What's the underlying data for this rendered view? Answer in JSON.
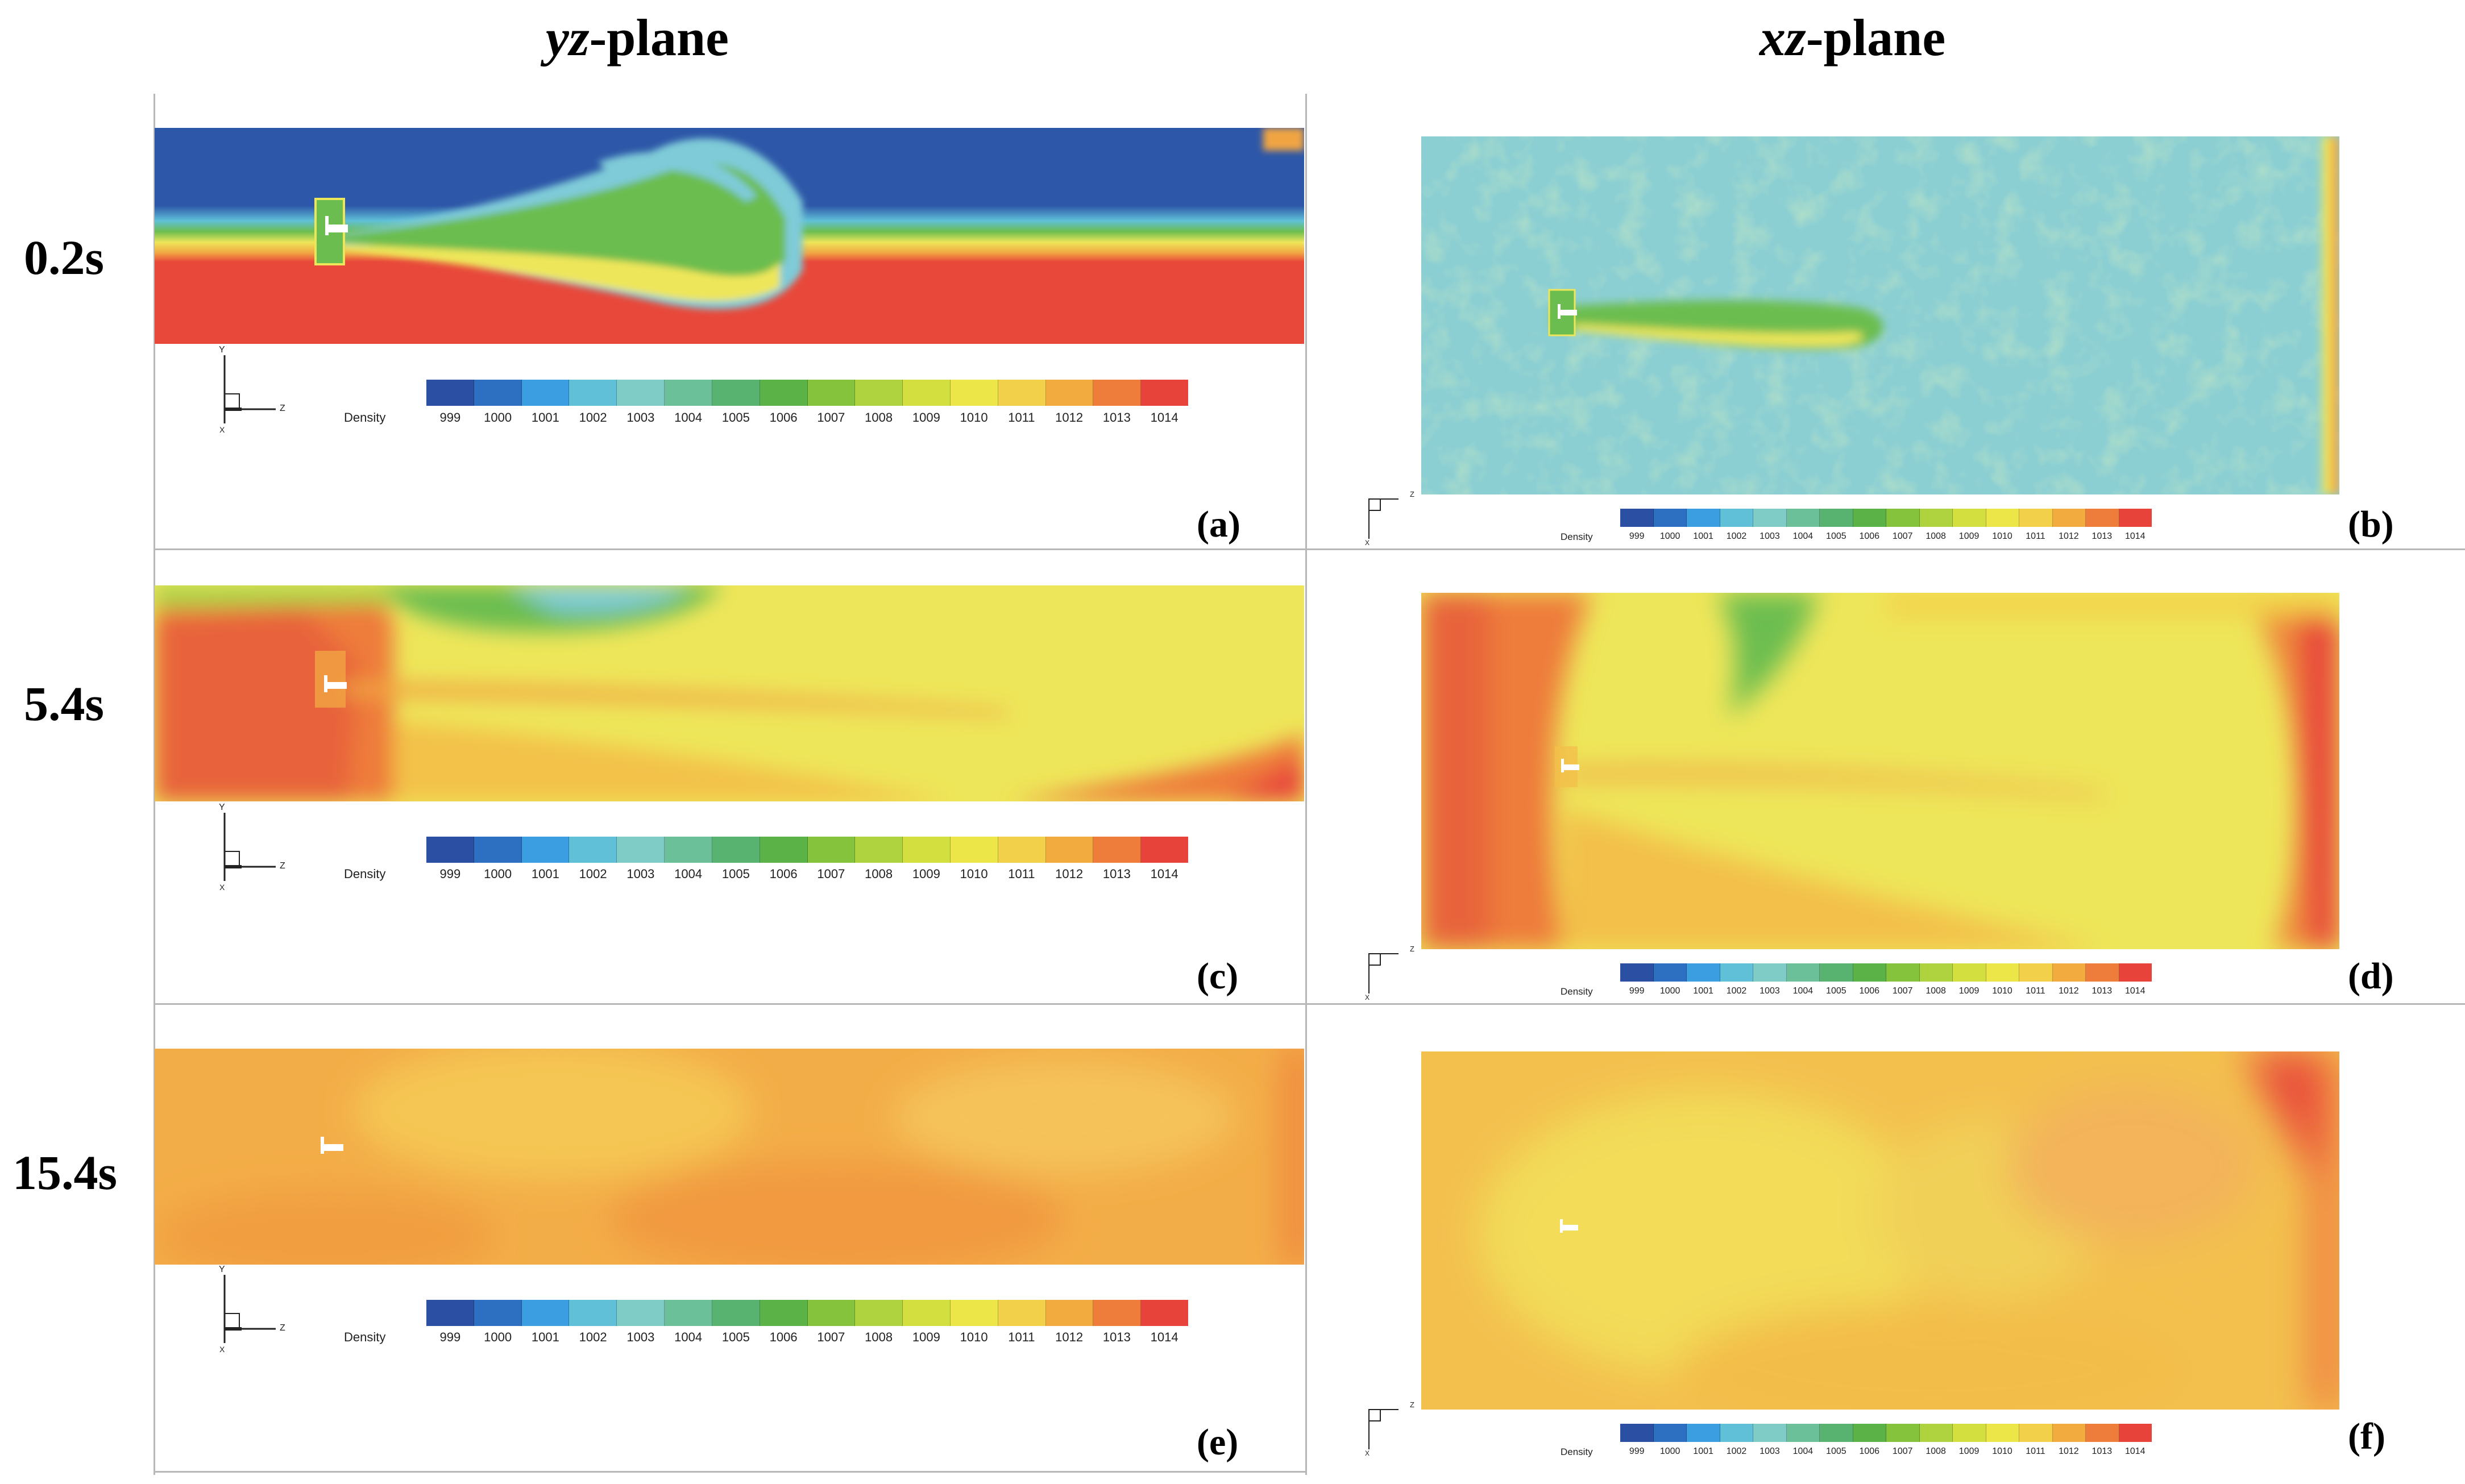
{
  "headers": {
    "yz_italic": "yz",
    "yz_rest": "-plane",
    "xz_italic": "xz",
    "xz_rest": "-plane"
  },
  "rows": [
    "0.2s",
    "5.4s",
    "15.4s"
  ],
  "panels": [
    "(a)",
    "(b)",
    "(c)",
    "(d)",
    "(e)",
    "(f)"
  ],
  "colorbar": {
    "label": "Density",
    "ticks": [
      "999",
      "1000",
      "1001",
      "1002",
      "1003",
      "1004",
      "1005",
      "1006",
      "1007",
      "1008",
      "1009",
      "1010",
      "1011",
      "1012",
      "1013",
      "1014"
    ],
    "colors": [
      "#2b4fa2",
      "#2d6fc0",
      "#3a9ee0",
      "#5fc0d8",
      "#7fcbc6",
      "#6bc09a",
      "#58b370",
      "#5bb347",
      "#86c33d",
      "#aed33e",
      "#d3df3f",
      "#ede648",
      "#f3d04a",
      "#f2ab3f",
      "#ee7c3a",
      "#e8433b"
    ]
  },
  "axis": {
    "y": "Y",
    "z": "Z",
    "x": "X"
  },
  "colors": {
    "dark_blue": "#2d57a8",
    "cyan": "#7fcbd8",
    "green": "#6cbd4f",
    "yellow": "#eee65a",
    "orange": "#f1a443",
    "red": "#e8483a",
    "light_orange": "#f3b24a"
  }
}
